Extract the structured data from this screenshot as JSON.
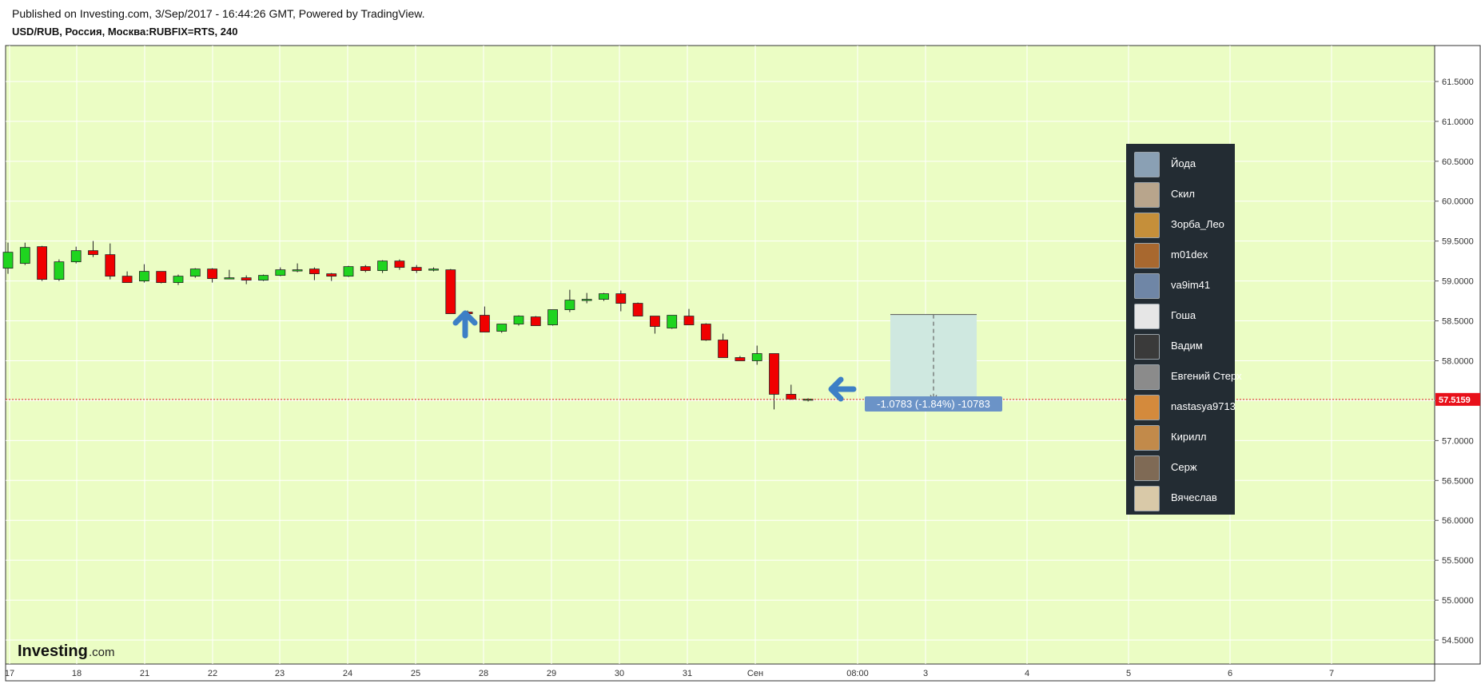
{
  "header": {
    "published": "Published on Investing.com, 3/Sep/2017 - 16:44:26 GMT, Powered by TradingView.",
    "symbol": "USD/RUB, Россия, Москва:RUBFIX=RTS, 240"
  },
  "colors": {
    "background": "#ebfdc4",
    "up": "#1fd41f",
    "down": "#f00000",
    "price_line": "#e0202a",
    "arrow": "#3d7fc6",
    "measure_fill": "#cfe8e0",
    "label_bg": "#6b93c7",
    "legend_bg": "#232c33"
  },
  "chart_data": {
    "type": "candlestick",
    "ylim": [
      54.2,
      61.95
    ],
    "y_ticks": [
      61.5,
      61.0,
      60.5,
      60.0,
      59.5,
      59.0,
      58.5,
      58.0,
      57.5,
      57.0,
      56.5,
      56.0,
      55.5,
      55.0,
      54.5
    ],
    "y_tick_labels": [
      "61.5000",
      "61.0000",
      "60.5000",
      "60.0000",
      "59.5000",
      "59.0000",
      "58.5000",
      "58.0000",
      "57.5000",
      "57.0000",
      "56.5000",
      "56.0000",
      "55.5000",
      "55.0000",
      "54.5000"
    ],
    "x_labels": [
      "17",
      "18",
      "21",
      "22",
      "23",
      "24",
      "25",
      "28",
      "29",
      "30",
      "31",
      "Сен",
      "08:00",
      "3",
      "4",
      "5",
      "6",
      "7"
    ],
    "current_price": 57.5159,
    "current_price_label": "57.5159",
    "candles": [
      {
        "o": 59.16,
        "h": 59.48,
        "l": 59.09,
        "c": 59.36
      },
      {
        "o": 59.22,
        "h": 59.48,
        "l": 59.2,
        "c": 59.42
      },
      {
        "o": 59.43,
        "h": 59.44,
        "l": 59.0,
        "c": 59.02
      },
      {
        "o": 59.02,
        "h": 59.27,
        "l": 59.0,
        "c": 59.24
      },
      {
        "o": 59.24,
        "h": 59.43,
        "l": 59.22,
        "c": 59.38
      },
      {
        "o": 59.38,
        "h": 59.5,
        "l": 59.3,
        "c": 59.33
      },
      {
        "o": 59.33,
        "h": 59.47,
        "l": 59.02,
        "c": 59.06
      },
      {
        "o": 59.06,
        "h": 59.12,
        "l": 58.98,
        "c": 58.98
      },
      {
        "o": 59.0,
        "h": 59.21,
        "l": 58.98,
        "c": 59.12
      },
      {
        "o": 59.12,
        "h": 59.12,
        "l": 58.97,
        "c": 58.98
      },
      {
        "o": 58.98,
        "h": 59.08,
        "l": 58.95,
        "c": 59.06
      },
      {
        "o": 59.06,
        "h": 59.16,
        "l": 59.04,
        "c": 59.15
      },
      {
        "o": 59.15,
        "h": 59.16,
        "l": 58.98,
        "c": 59.03
      },
      {
        "o": 59.04,
        "h": 59.14,
        "l": 59.03,
        "c": 59.04
      },
      {
        "o": 59.04,
        "h": 59.07,
        "l": 58.96,
        "c": 59.01
      },
      {
        "o": 59.01,
        "h": 59.08,
        "l": 59.0,
        "c": 59.07
      },
      {
        "o": 59.07,
        "h": 59.17,
        "l": 59.06,
        "c": 59.14
      },
      {
        "o": 59.14,
        "h": 59.22,
        "l": 59.11,
        "c": 59.14
      },
      {
        "o": 59.15,
        "h": 59.17,
        "l": 59.01,
        "c": 59.09
      },
      {
        "o": 59.09,
        "h": 59.1,
        "l": 59.0,
        "c": 59.06
      },
      {
        "o": 59.06,
        "h": 59.19,
        "l": 59.05,
        "c": 59.18
      },
      {
        "o": 59.18,
        "h": 59.2,
        "l": 59.11,
        "c": 59.13
      },
      {
        "o": 59.13,
        "h": 59.26,
        "l": 59.1,
        "c": 59.25
      },
      {
        "o": 59.25,
        "h": 59.27,
        "l": 59.14,
        "c": 59.17
      },
      {
        "o": 59.17,
        "h": 59.2,
        "l": 59.1,
        "c": 59.13
      },
      {
        "o": 59.14,
        "h": 59.17,
        "l": 59.12,
        "c": 59.15
      },
      {
        "o": 59.14,
        "h": 59.15,
        "l": 58.59,
        "c": 58.59
      },
      {
        "o": 58.61,
        "h": 58.63,
        "l": 58.59,
        "c": 58.59
      },
      {
        "o": 58.57,
        "h": 58.68,
        "l": 58.36,
        "c": 58.36
      },
      {
        "o": 58.37,
        "h": 58.46,
        "l": 58.35,
        "c": 58.46
      },
      {
        "o": 58.46,
        "h": 58.57,
        "l": 58.44,
        "c": 58.56
      },
      {
        "o": 58.55,
        "h": 58.56,
        "l": 58.44,
        "c": 58.44
      },
      {
        "o": 58.45,
        "h": 58.64,
        "l": 58.44,
        "c": 58.64
      },
      {
        "o": 58.64,
        "h": 58.89,
        "l": 58.61,
        "c": 58.76
      },
      {
        "o": 58.76,
        "h": 58.85,
        "l": 58.72,
        "c": 58.77
      },
      {
        "o": 58.77,
        "h": 58.85,
        "l": 58.75,
        "c": 58.84
      },
      {
        "o": 58.84,
        "h": 58.88,
        "l": 58.62,
        "c": 58.72
      },
      {
        "o": 58.72,
        "h": 58.73,
        "l": 58.56,
        "c": 58.56
      },
      {
        "o": 58.56,
        "h": 58.56,
        "l": 58.34,
        "c": 58.43
      },
      {
        "o": 58.41,
        "h": 58.57,
        "l": 58.4,
        "c": 58.57
      },
      {
        "o": 58.56,
        "h": 58.65,
        "l": 58.45,
        "c": 58.45
      },
      {
        "o": 58.46,
        "h": 58.47,
        "l": 58.25,
        "c": 58.26
      },
      {
        "o": 58.26,
        "h": 58.34,
        "l": 58.04,
        "c": 58.04
      },
      {
        "o": 58.04,
        "h": 58.06,
        "l": 58.0,
        "c": 58.0
      },
      {
        "o": 58.0,
        "h": 58.19,
        "l": 57.95,
        "c": 58.09
      },
      {
        "o": 58.09,
        "h": 58.09,
        "l": 57.39,
        "c": 57.58
      },
      {
        "o": 57.58,
        "h": 57.7,
        "l": 57.51,
        "c": 57.52
      },
      {
        "o": 57.52,
        "h": 57.53,
        "l": 57.49,
        "c": 57.52
      }
    ],
    "annotation": {
      "type": "price-range",
      "from": 58.58,
      "to": 57.5,
      "label": "-1.0783 (-1.84%) -10783"
    }
  },
  "watermark": {
    "brand": "Investing",
    "suffix": ".com"
  },
  "legend": {
    "users": [
      {
        "name": "Йода",
        "avatar": "#8aa0b4"
      },
      {
        "name": "Скил",
        "avatar": "#b8a58c"
      },
      {
        "name": "Зорба_Лео",
        "avatar": "#c58f3a"
      },
      {
        "name": "m01dex",
        "avatar": "#a8682f"
      },
      {
        "name": "va9im41",
        "avatar": "#6f86a6"
      },
      {
        "name": "Гоша",
        "avatar": "#e6e6e6"
      },
      {
        "name": "Вадим",
        "avatar": "#3a3a3a"
      },
      {
        "name": "Евгений Стерх",
        "avatar": "#8b8b8b"
      },
      {
        "name": "nastasya9713",
        "avatar": "#d48a3c"
      },
      {
        "name": "Кирилл",
        "avatar": "#c28a4a"
      },
      {
        "name": "Серж",
        "avatar": "#7f6a55"
      },
      {
        "name": "Вячеслав",
        "avatar": "#d9c9a8"
      }
    ]
  }
}
